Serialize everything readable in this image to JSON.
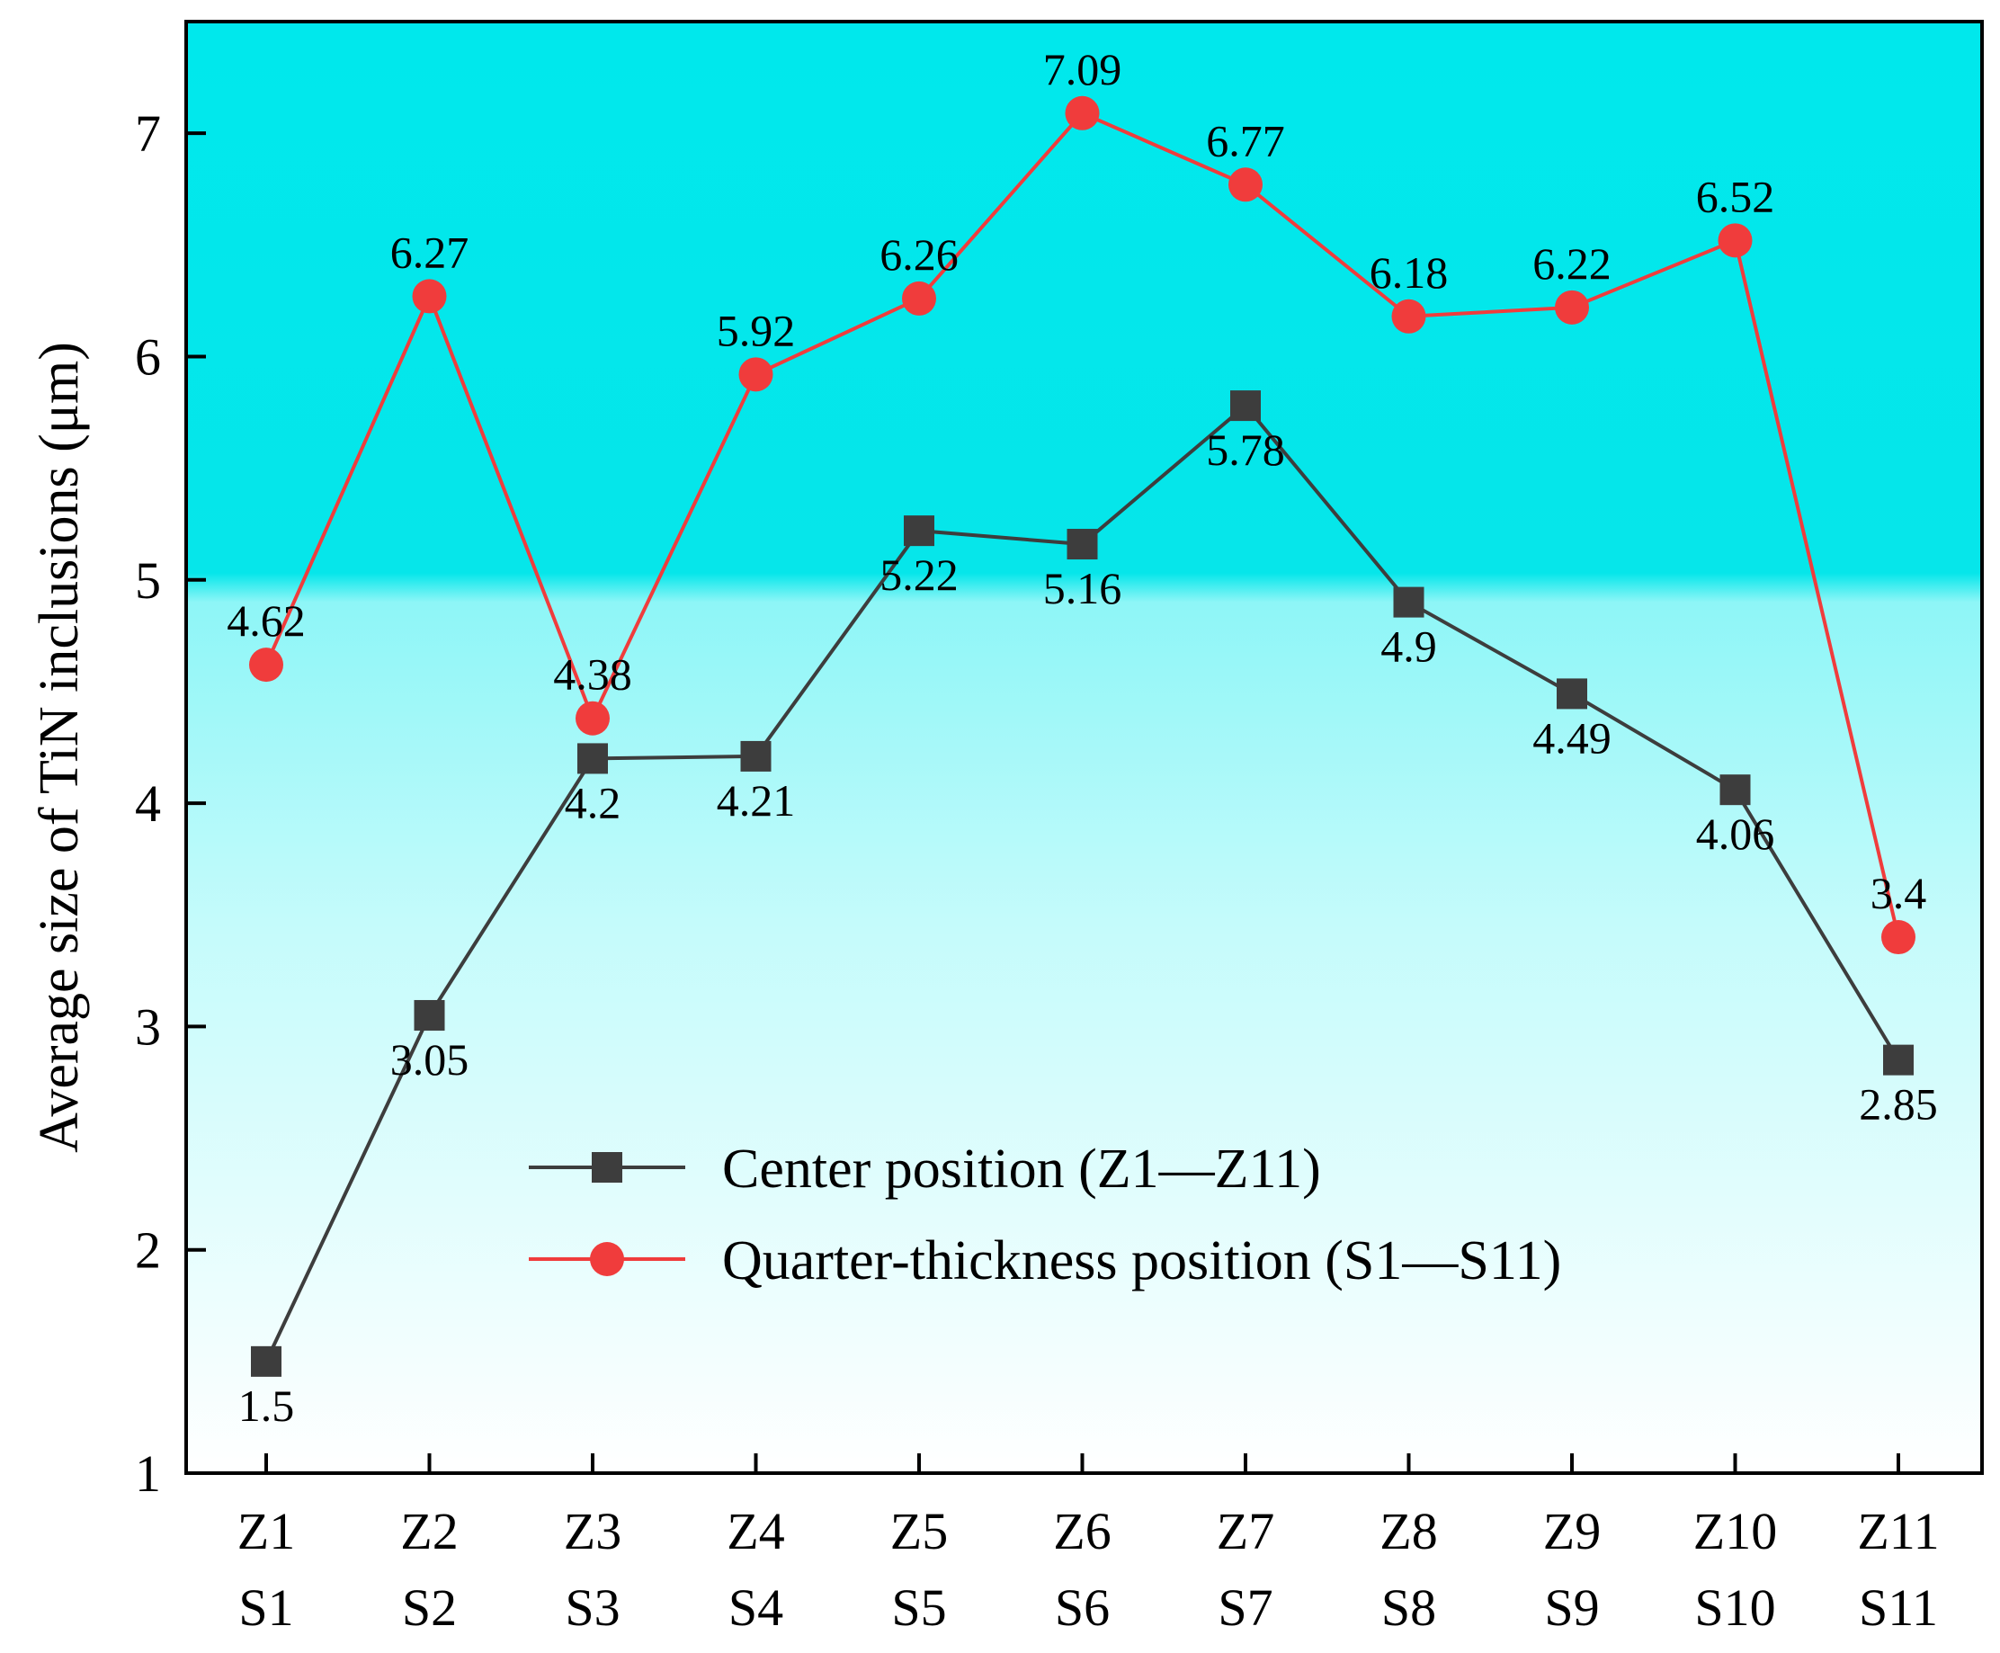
{
  "chart_data": {
    "type": "line",
    "title": "",
    "ylabel": "Average size of TiN inclusions (μm)",
    "xlabel": "",
    "ylim": [
      1,
      7.5
    ],
    "yticks": [
      1,
      2,
      3,
      4,
      5,
      6,
      7
    ],
    "categories_top": [
      "Z1",
      "Z2",
      "Z3",
      "Z4",
      "Z5",
      "Z6",
      "Z7",
      "Z8",
      "Z9",
      "Z10",
      "Z11"
    ],
    "categories_bottom": [
      "S1",
      "S2",
      "S3",
      "S4",
      "S5",
      "S6",
      "S7",
      "S8",
      "S9",
      "S10",
      "S11"
    ],
    "legend_position": "lower-right",
    "background_gradient": {
      "top": "#00e8ec",
      "bottom": "#ffffff"
    },
    "series": [
      {
        "name": "Center position (Z1—Z11)",
        "marker": "square",
        "color": "#3d3d3d",
        "values": [
          1.5,
          3.05,
          4.2,
          4.21,
          5.22,
          5.16,
          5.78,
          4.9,
          4.49,
          4.06,
          2.85
        ],
        "labels": [
          "1.5",
          "3.05",
          "4.2",
          "4.21",
          "5.22",
          "5.16",
          "5.78",
          "4.9",
          "4.49",
          "4.06",
          "2.85"
        ]
      },
      {
        "name": "Quarter-thickness position (S1—S11)",
        "marker": "circle",
        "color": "#f03c3c",
        "values": [
          4.62,
          6.27,
          4.38,
          5.92,
          6.26,
          7.09,
          6.77,
          6.18,
          6.22,
          6.52,
          3.4
        ],
        "labels": [
          "4.62",
          "6.27",
          "4.38",
          "5.92",
          "6.26",
          "7.09",
          "6.77",
          "6.18",
          "6.22",
          "6.52",
          "3.4"
        ]
      }
    ]
  }
}
